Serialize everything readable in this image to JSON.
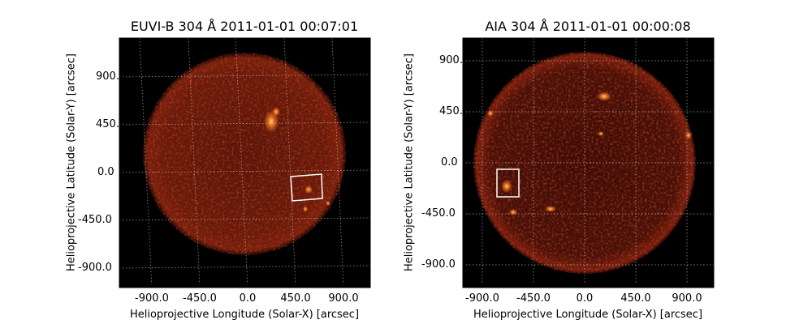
{
  "panels": [
    {
      "title": "EUVI-B 304 Å 2011-01-01 00:07:01",
      "xlabel": "Helioprojective Longitude (Solar-X) [arcsec]",
      "ylabel": "Helioprojective Latitude (Solar-Y) [arcsec]",
      "xticks": [
        "-900.0",
        "-450.0",
        "0.0",
        "450.0",
        "900.0"
      ],
      "yticks": [
        "900.0",
        "450.0",
        "0.0",
        "-450.0",
        "-900.0"
      ]
    },
    {
      "title": "AIA 304 Å 2011-01-01 00:00:08",
      "xlabel": "Helioprojective Longitude (Solar-X) [arcsec]",
      "ylabel": "Helioprojective Latitude (Solar-Y) [arcsec]",
      "xticks": [
        "-900.0",
        "-450.0",
        "0.0",
        "450.0",
        "900.0"
      ],
      "yticks": [
        "900.0",
        "450.0",
        "0.0",
        "-450.0",
        "-900.0"
      ]
    }
  ],
  "colors": {
    "background": "#000000",
    "sun_dark": "#3a0d05",
    "sun_mid": "#6e1a0a",
    "active_region": "#ffb347",
    "roi_box": "#ffffff"
  }
}
